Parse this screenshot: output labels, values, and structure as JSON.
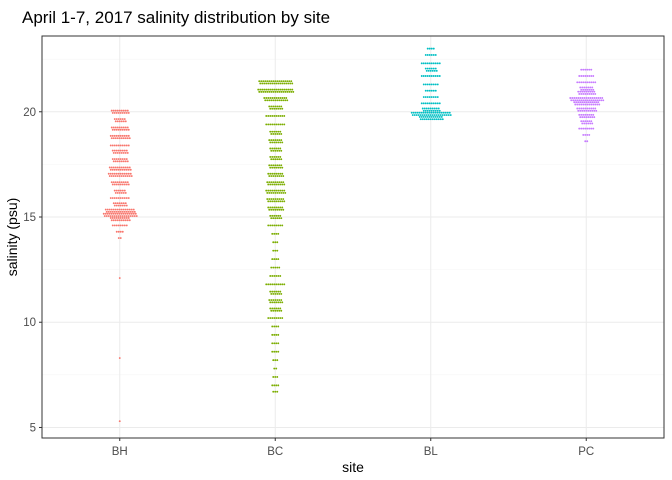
{
  "chart_data": {
    "type": "scatter",
    "subtype": "beeswarm",
    "title": "April 1-7, 2017 salinity distribution by site",
    "xlabel": "site",
    "ylabel": "salinity (psu)",
    "categories": [
      "BH",
      "BC",
      "BL",
      "PC"
    ],
    "ylim": [
      4.5,
      23.6
    ],
    "yticks": [
      5,
      10,
      15,
      20
    ],
    "grid": true,
    "legend": "none",
    "series": [
      {
        "category": "BH",
        "color": "#F8766D",
        "distribution": [
          {
            "value": 20.0,
            "count": 18
          },
          {
            "value": 19.6,
            "count": 12
          },
          {
            "value": 19.2,
            "count": 18
          },
          {
            "value": 18.8,
            "count": 20
          },
          {
            "value": 18.4,
            "count": 10
          },
          {
            "value": 18.1,
            "count": 16
          },
          {
            "value": 17.7,
            "count": 16
          },
          {
            "value": 17.3,
            "count": 22
          },
          {
            "value": 17.0,
            "count": 24
          },
          {
            "value": 16.6,
            "count": 18
          },
          {
            "value": 16.2,
            "count": 12
          },
          {
            "value": 15.9,
            "count": 10
          },
          {
            "value": 15.6,
            "count": 14
          },
          {
            "value": 15.3,
            "count": 30
          },
          {
            "value": 15.1,
            "count": 34
          },
          {
            "value": 14.9,
            "count": 20
          },
          {
            "value": 14.6,
            "count": 8
          },
          {
            "value": 14.3,
            "count": 4
          },
          {
            "value": 14.0,
            "count": 2
          },
          {
            "value": 12.1,
            "count": 1
          },
          {
            "value": 8.3,
            "count": 1
          },
          {
            "value": 5.3,
            "count": 1
          }
        ]
      },
      {
        "category": "BC",
        "color": "#7CAE00",
        "distribution": [
          {
            "value": 21.4,
            "count": 34
          },
          {
            "value": 21.0,
            "count": 36
          },
          {
            "value": 20.6,
            "count": 24
          },
          {
            "value": 20.2,
            "count": 14
          },
          {
            "value": 19.8,
            "count": 10
          },
          {
            "value": 19.4,
            "count": 10
          },
          {
            "value": 19.0,
            "count": 12
          },
          {
            "value": 18.6,
            "count": 14
          },
          {
            "value": 18.2,
            "count": 12
          },
          {
            "value": 17.8,
            "count": 12
          },
          {
            "value": 17.4,
            "count": 14
          },
          {
            "value": 17.0,
            "count": 16
          },
          {
            "value": 16.6,
            "count": 18
          },
          {
            "value": 16.2,
            "count": 20
          },
          {
            "value": 15.8,
            "count": 18
          },
          {
            "value": 15.4,
            "count": 16
          },
          {
            "value": 15.0,
            "count": 12
          },
          {
            "value": 14.6,
            "count": 8
          },
          {
            "value": 14.2,
            "count": 4
          },
          {
            "value": 13.8,
            "count": 3
          },
          {
            "value": 13.4,
            "count": 3
          },
          {
            "value": 13.0,
            "count": 4
          },
          {
            "value": 12.6,
            "count": 5
          },
          {
            "value": 12.2,
            "count": 6
          },
          {
            "value": 11.8,
            "count": 10
          },
          {
            "value": 11.4,
            "count": 12
          },
          {
            "value": 11.0,
            "count": 14
          },
          {
            "value": 10.6,
            "count": 12
          },
          {
            "value": 10.2,
            "count": 8
          },
          {
            "value": 9.8,
            "count": 4
          },
          {
            "value": 9.4,
            "count": 4
          },
          {
            "value": 9.0,
            "count": 4
          },
          {
            "value": 8.6,
            "count": 4
          },
          {
            "value": 8.2,
            "count": 3
          },
          {
            "value": 7.8,
            "count": 2
          },
          {
            "value": 7.4,
            "count": 3
          },
          {
            "value": 7.0,
            "count": 4
          },
          {
            "value": 6.7,
            "count": 3
          }
        ]
      },
      {
        "category": "BL",
        "color": "#00BFC4",
        "distribution": [
          {
            "value": 23.0,
            "count": 4
          },
          {
            "value": 22.7,
            "count": 6
          },
          {
            "value": 22.3,
            "count": 10
          },
          {
            "value": 22.0,
            "count": 12
          },
          {
            "value": 21.7,
            "count": 10
          },
          {
            "value": 21.3,
            "count": 8
          },
          {
            "value": 21.0,
            "count": 6
          },
          {
            "value": 20.7,
            "count": 8
          },
          {
            "value": 20.4,
            "count": 10
          },
          {
            "value": 20.1,
            "count": 18
          },
          {
            "value": 19.9,
            "count": 40
          },
          {
            "value": 19.7,
            "count": 24
          }
        ]
      },
      {
        "category": "PC",
        "color": "#C77CFF",
        "distribution": [
          {
            "value": 22.0,
            "count": 6
          },
          {
            "value": 21.7,
            "count": 8
          },
          {
            "value": 21.4,
            "count": 10
          },
          {
            "value": 21.1,
            "count": 14
          },
          {
            "value": 20.9,
            "count": 18
          },
          {
            "value": 20.6,
            "count": 34
          },
          {
            "value": 20.4,
            "count": 26
          },
          {
            "value": 20.1,
            "count": 20
          },
          {
            "value": 19.8,
            "count": 16
          },
          {
            "value": 19.5,
            "count": 12
          },
          {
            "value": 19.2,
            "count": 8
          },
          {
            "value": 18.9,
            "count": 4
          },
          {
            "value": 18.6,
            "count": 2
          }
        ]
      }
    ]
  }
}
